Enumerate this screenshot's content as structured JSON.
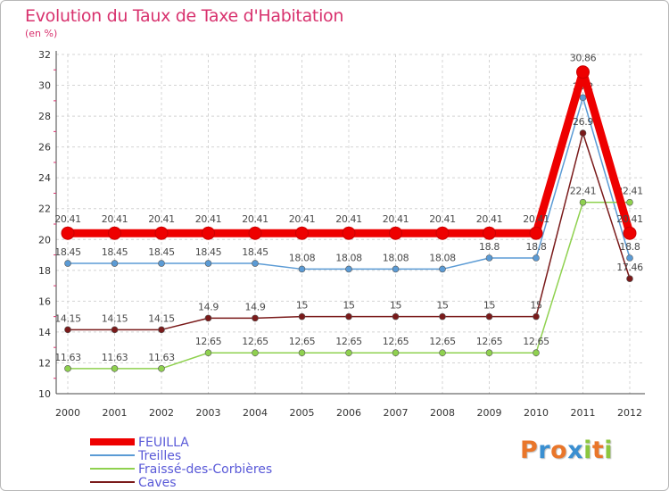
{
  "header": {
    "title": "Evolution du Taux de Taxe d'Habitation",
    "unit": "(en %)"
  },
  "logo": {
    "text": "Proxiti",
    "letters": [
      {
        "ch": "P",
        "color": "#e9762a"
      },
      {
        "ch": "r",
        "color": "#3a8fd1"
      },
      {
        "ch": "o",
        "color": "#e9762a"
      },
      {
        "ch": "x",
        "color": "#3a8fd1"
      },
      {
        "ch": "i",
        "color": "#8cc63f"
      },
      {
        "ch": "t",
        "color": "#e9762a"
      },
      {
        "ch": "i",
        "color": "#8cc63f"
      }
    ]
  },
  "chart_data": {
    "type": "line",
    "title": "Evolution du Taux de Taxe d'Habitation",
    "ylabel": "(en %)",
    "xlabel": "",
    "x": [
      "2000",
      "2001",
      "2002",
      "2003",
      "2004",
      "2005",
      "2006",
      "2007",
      "2008",
      "2009",
      "2010",
      "2011",
      "2012"
    ],
    "ylim": [
      10,
      32
    ],
    "yticks": [
      10,
      12,
      14,
      16,
      18,
      20,
      22,
      24,
      26,
      28,
      30,
      32
    ],
    "grid": true,
    "legend": "bottom-left",
    "series": [
      {
        "name": "FEUILLA",
        "color": "#ee0000",
        "emphasis": true,
        "values": [
          20.41,
          20.41,
          20.41,
          20.41,
          20.41,
          20.41,
          20.41,
          20.41,
          20.41,
          20.41,
          20.41,
          30.86,
          20.41
        ],
        "labels": [
          "20.41",
          "20.41",
          "20.41",
          "20.41",
          "20.41",
          "20.41",
          "20.41",
          "20.41",
          "20.41",
          "20.41",
          "20.41",
          "30.86",
          "20.41"
        ]
      },
      {
        "name": "Treilles",
        "color": "#5b9bd5",
        "emphasis": false,
        "values": [
          18.45,
          18.45,
          18.45,
          18.45,
          18.45,
          18.08,
          18.08,
          18.08,
          18.08,
          18.8,
          18.8,
          29.2,
          18.8
        ],
        "labels": [
          "18.45",
          "18.45",
          "18.45",
          "18.45",
          "18.45",
          "18.08",
          "18.08",
          "18.08",
          "18.08",
          "18.8",
          "18.8",
          "29.2",
          "18.8"
        ]
      },
      {
        "name": "Fraissé-des-Corbières",
        "color": "#8fd14f",
        "emphasis": false,
        "values": [
          11.63,
          11.63,
          11.63,
          12.65,
          12.65,
          12.65,
          12.65,
          12.65,
          12.65,
          12.65,
          12.65,
          22.41,
          22.41
        ],
        "labels": [
          "11.63",
          "11.63",
          "11.63",
          "12.65",
          "12.65",
          "12.65",
          "12.65",
          "12.65",
          "12.65",
          "12.65",
          "12.65",
          "22.41",
          "22.41"
        ]
      },
      {
        "name": "Caves",
        "color": "#7a1a1a",
        "emphasis": false,
        "values": [
          14.15,
          14.15,
          14.15,
          14.9,
          14.9,
          15,
          15,
          15,
          15,
          15,
          15,
          26.9,
          17.46
        ],
        "labels": [
          "14.15",
          "14.15",
          "14.15",
          "14.9",
          "14.9",
          "15",
          "15",
          "15",
          "15",
          "15",
          "15",
          "26.9",
          "17.46"
        ]
      }
    ]
  }
}
